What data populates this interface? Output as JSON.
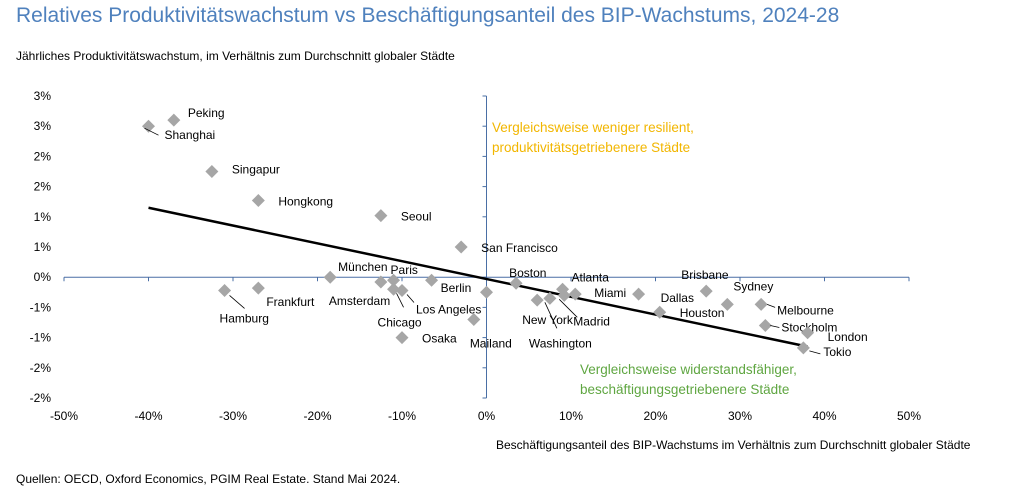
{
  "chart_data": {
    "type": "scatter",
    "title": "Relatives Produktivitätswachstum vs Beschäftigungsanteil des BIP-Wachstums, 2024-28",
    "ylabel": "Jährliches Produktivitätswachstum, im Verhältnis zum Durchschnitt globaler Städte",
    "xlabel": "Beschäftigungsanteil des BIP-Wachstums im Verhältnis zum Durchschnitt globaler Städte",
    "source": "Quellen: OECD, Oxford Economics, PGIM Real Estate. Stand Mai 2024.",
    "xlim": [
      -50,
      50
    ],
    "ylim": [
      -2,
      3
    ],
    "x_ticks": [
      -50,
      -40,
      -30,
      -20,
      -10,
      0,
      10,
      20,
      30,
      40,
      50
    ],
    "x_tick_labels": [
      "-50%",
      "-40%",
      "-30%",
      "-20%",
      "-10%",
      "0%",
      "10%",
      "20%",
      "30%",
      "40%",
      "50%"
    ],
    "y_ticks": [
      3,
      2.5,
      2,
      1.5,
      1,
      0.5,
      0,
      -0.5,
      -1,
      -1.5,
      -2
    ],
    "y_tick_labels": [
      "3%",
      "3%",
      "2%",
      "2%",
      "1%",
      "1%",
      "0%",
      "-1%",
      "-1%",
      "-2%",
      "-2%"
    ],
    "marker_color": "#a6a6a6",
    "trend_color": "#000000",
    "points": [
      {
        "label": "Peking",
        "x": -37,
        "y": 2.6
      },
      {
        "label": "Shanghai",
        "x": -40,
        "y": 2.5
      },
      {
        "label": "Singapur",
        "x": -32.5,
        "y": 1.75
      },
      {
        "label": "Hongkong",
        "x": -27,
        "y": 1.27
      },
      {
        "label": "Seoul",
        "x": -12.5,
        "y": 1.02
      },
      {
        "label": "San Francisco",
        "x": -3,
        "y": 0.5
      },
      {
        "label": "München",
        "x": -18.5,
        "y": 0.0
      },
      {
        "label": "Paris",
        "x": -11,
        "y": -0.05
      },
      {
        "label": "Amsterdam",
        "x": -12.5,
        "y": -0.08
      },
      {
        "label": "Berlin",
        "x": -6.5,
        "y": -0.05
      },
      {
        "label": "Los Angeles",
        "x": -10,
        "y": -0.22
      },
      {
        "label": "Chicago",
        "x": -11,
        "y": -0.2
      },
      {
        "label": "Frankfurt",
        "x": -27,
        "y": -0.18
      },
      {
        "label": "Hamburg",
        "x": -31,
        "y": -0.22
      },
      {
        "label": "Osaka",
        "x": -10,
        "y": -1.0
      },
      {
        "label": "Mailand",
        "x": -1.5,
        "y": -0.7
      },
      {
        "label": "Boston",
        "x": 3.5,
        "y": -0.1
      },
      {
        "label": "Atlanta",
        "x": 9,
        "y": -0.2
      },
      {
        "label": "Miami",
        "x": 10.5,
        "y": -0.28
      },
      {
        "label": "New York",
        "x": 6,
        "y": -0.38
      },
      {
        "label": "Washington",
        "x": 7.5,
        "y": -0.35
      },
      {
        "label": "Madrid",
        "x": 9.2,
        "y": -0.3
      },
      {
        "label": "Dallas",
        "x": 18,
        "y": -0.28
      },
      {
        "label": "Brisbane",
        "x": 26,
        "y": -0.23
      },
      {
        "label": "Houston",
        "x": 20.5,
        "y": -0.58
      },
      {
        "label": "Sydney",
        "x": 28.5,
        "y": -0.45
      },
      {
        "label": "Melbourne",
        "x": 32.5,
        "y": -0.45
      },
      {
        "label": "Stockholm",
        "x": 33,
        "y": -0.8
      },
      {
        "label": "London",
        "x": 38,
        "y": -0.92
      },
      {
        "label": "Tokio",
        "x": 37.5,
        "y": -1.17
      },
      {
        "label": "",
        "x": 0,
        "y": -0.25
      }
    ],
    "trendline": {
      "x1": -40,
      "y1": 1.15,
      "x2": 38,
      "y2": -1.15
    },
    "annotations": [
      {
        "lines": [
          "Vergleichsweise weniger resilient,",
          "produktivitätsgetriebenere Städte"
        ],
        "color": "#f2b600"
      },
      {
        "lines": [
          "Vergleichsweise widerstandsfähiger,",
          "beschäftigungsgetriebenere Städte"
        ],
        "color": "#5fa641"
      }
    ]
  }
}
